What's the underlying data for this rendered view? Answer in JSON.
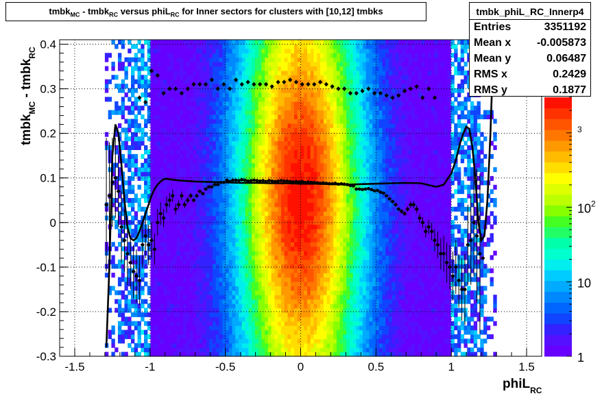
{
  "title": {
    "parts": [
      "tmbk",
      "MC",
      " - tmbk",
      "RC",
      " versus phiL",
      "RC",
      " for Inner sectors for clusters with [10,12] tmbks"
    ]
  },
  "stats": {
    "name": "tmbk_phiL_RC_Innerp4",
    "rows": [
      {
        "key": "Entries",
        "value": "3351192"
      },
      {
        "key": "Mean x",
        "value": "-0.005873"
      },
      {
        "key": "Mean y",
        "value": "0.06487"
      },
      {
        "key": "RMS x",
        "value": "0.2429"
      },
      {
        "key": "RMS y",
        "value": "0.1877"
      }
    ]
  },
  "chart_data": {
    "type": "heatmap",
    "xlabel": {
      "main": "phiL",
      "sub": "RC"
    },
    "ylabel": {
      "parts": [
        "tmbk",
        "MC",
        " - tmbk",
        "RC"
      ]
    },
    "xlim": [
      -1.6,
      1.6
    ],
    "ylim": [
      -0.3,
      0.41
    ],
    "x_ticks": [
      "-1.5",
      "-1",
      "-0.5",
      "0",
      "0.5",
      "1",
      "1.5"
    ],
    "x_tick_values": [
      -1.5,
      -1,
      -0.5,
      0,
      0.5,
      1,
      1.5
    ],
    "y_ticks": [
      "-0.3",
      "-0.2",
      "-0.1",
      "0",
      "0.1",
      "0.2",
      "0.3",
      "0.4"
    ],
    "y_tick_values": [
      -0.3,
      -0.2,
      -0.1,
      0,
      0.1,
      0.2,
      0.3,
      0.4
    ],
    "grid": true,
    "z_scale": "log",
    "z_range": [
      1,
      3000
    ],
    "z_labels": [
      {
        "value": 1,
        "text": "1"
      },
      {
        "value": 10,
        "text": "10"
      },
      {
        "value": 100,
        "base": "10",
        "exp": "2"
      },
      {
        "value": 1000,
        "base": "",
        "exp": "3"
      }
    ],
    "palette": [
      "#6600ff",
      "#5511ff",
      "#3322ff",
      "#1144ff",
      "#0066ff",
      "#0088ff",
      "#00aaff",
      "#00ccff",
      "#00eeee",
      "#00ffcc",
      "#00ffaa",
      "#22ff66",
      "#44ff22",
      "#88ff00",
      "#bbff00",
      "#ddff00",
      "#ffff00",
      "#ffdd00",
      "#ffbb00",
      "#ff9900",
      "#ff7700",
      "#ff5500",
      "#ff3300",
      "#ff1100"
    ],
    "profile_x": [
      -1.29,
      -1.27,
      -1.25,
      -1.23,
      -1.21,
      -1.19,
      -1.17,
      -1.15,
      -1.13,
      -1.11,
      -1.09,
      -1.07,
      -1.05,
      -1.03,
      -1.01,
      -0.99,
      -0.97,
      -0.95,
      -0.93,
      -0.91,
      -0.89,
      -0.87,
      -0.85,
      -0.83,
      -0.81,
      -0.79,
      -0.77,
      -0.75,
      -0.73,
      -0.71,
      -0.69,
      -0.67,
      -0.65,
      -0.63,
      -0.61,
      -0.59,
      -0.57,
      -0.55,
      -0.53,
      -0.51,
      -0.49,
      -0.47,
      -0.45,
      -0.43,
      -0.41,
      -0.39,
      -0.37,
      -0.35,
      -0.33,
      -0.31,
      -0.29,
      -0.27,
      -0.25,
      -0.23,
      -0.21,
      -0.19,
      -0.17,
      -0.15,
      -0.13,
      -0.11,
      -0.09,
      -0.07,
      -0.05,
      -0.03,
      -0.01,
      0.01,
      0.03,
      0.05,
      0.07,
      0.09,
      0.11,
      0.13,
      0.15,
      0.17,
      0.19,
      0.21,
      0.23,
      0.25,
      0.27,
      0.29,
      0.31,
      0.33,
      0.35,
      0.37,
      0.39,
      0.41,
      0.43,
      0.45,
      0.47,
      0.49,
      0.51,
      0.53,
      0.55,
      0.57,
      0.59,
      0.61,
      0.63,
      0.65,
      0.67,
      0.69,
      0.71,
      0.73,
      0.75,
      0.77,
      0.79,
      0.81,
      0.83,
      0.85,
      0.87,
      0.89,
      0.91,
      0.93,
      0.95,
      0.97,
      0.99,
      1.01,
      1.03,
      1.05,
      1.07,
      1.09,
      1.11,
      1.13,
      1.15,
      1.17,
      1.19,
      1.21,
      1.23,
      1.25,
      1.27
    ],
    "profile_mean": [
      0.04,
      0.06,
      0.09,
      0.1,
      0.07,
      -0.01,
      -0.04,
      -0.07,
      -0.09,
      -0.11,
      -0.12,
      -0.13,
      -0.05,
      -0.03,
      -0.05,
      -0.04,
      -0.06,
      0.0,
      0.02,
      0.01,
      0.04,
      0.05,
      0.06,
      0.03,
      0.04,
      0.06,
      0.04,
      0.05,
      0.06,
      0.05,
      0.06,
      0.07,
      0.065,
      0.075,
      0.08,
      0.08,
      0.085,
      0.085,
      0.09,
      0.09,
      0.095,
      0.092,
      0.095,
      0.095,
      0.094,
      0.096,
      0.095,
      0.093,
      0.094,
      0.095,
      0.094,
      0.093,
      0.094,
      0.092,
      0.094,
      0.093,
      0.092,
      0.093,
      0.094,
      0.093,
      0.093,
      0.092,
      0.091,
      0.092,
      0.091,
      0.092,
      0.09,
      0.091,
      0.09,
      0.09,
      0.089,
      0.088,
      0.089,
      0.088,
      0.087,
      0.087,
      0.088,
      0.086,
      0.087,
      0.086,
      0.085,
      0.083,
      0.082,
      0.075,
      0.075,
      0.074,
      0.075,
      0.076,
      0.074,
      0.071,
      0.072,
      0.068,
      0.066,
      0.06,
      0.053,
      0.047,
      0.04,
      0.03,
      0.025,
      0.02,
      0.03,
      0.04,
      0.04,
      0.03,
      0.01,
      0.0,
      -0.02,
      -0.01,
      -0.02,
      -0.04,
      -0.05,
      -0.07,
      -0.07,
      -0.09,
      -0.1,
      -0.12,
      -0.1,
      -0.13,
      -0.15,
      -0.15,
      -0.05,
      -0.04,
      0.0,
      -0.03,
      -0.07,
      -0.08
    ],
    "profile_err": [
      0.15,
      0.12,
      0.1,
      0.09,
      0.08,
      0.08,
      0.07,
      0.07,
      0.06,
      0.06,
      0.06,
      0.055,
      0.05,
      0.05,
      0.045,
      0.04,
      0.035,
      0.03,
      0.025,
      0.02,
      0.018,
      0.016,
      0.014,
      0.012,
      0.01,
      0.009,
      0.008,
      0.007,
      0.006,
      0.005,
      0.005,
      0.004,
      0.004,
      0.003,
      0.003,
      0.003,
      0.003,
      0.002,
      0.002,
      0.002,
      0.002,
      0.002,
      0.002,
      0.002,
      0.002,
      0.002,
      0.002,
      0.002,
      0.002,
      0.002,
      0.002,
      0.002,
      0.002,
      0.002,
      0.002,
      0.002,
      0.002,
      0.002,
      0.002,
      0.002,
      0.002,
      0.002,
      0.002,
      0.002,
      0.002,
      0.002,
      0.002,
      0.002,
      0.002,
      0.002,
      0.002,
      0.002,
      0.002,
      0.002,
      0.002,
      0.002,
      0.002,
      0.002,
      0.002,
      0.002,
      0.002,
      0.002,
      0.002,
      0.002,
      0.002,
      0.002,
      0.002,
      0.002,
      0.002,
      0.002,
      0.002,
      0.002,
      0.002,
      0.003,
      0.003,
      0.003,
      0.004,
      0.004,
      0.005,
      0.005,
      0.006,
      0.007,
      0.008,
      0.009,
      0.01,
      0.012,
      0.014,
      0.016,
      0.02,
      0.025,
      0.03,
      0.035,
      0.04,
      0.045,
      0.05,
      0.055,
      0.06,
      0.06,
      0.07,
      0.08,
      0.09,
      0.1,
      0.12,
      0.15,
      0.18
    ],
    "upper_x": [
      -1.07,
      -1.03,
      -0.99,
      -0.95,
      -0.91,
      -0.87,
      -0.83,
      -0.79,
      -0.75,
      -0.71,
      -0.67,
      -0.63,
      -0.59,
      -0.55,
      -0.51,
      -0.47,
      -0.43,
      -0.39,
      -0.35,
      -0.31,
      -0.27,
      -0.23,
      -0.19,
      -0.15,
      -0.11,
      -0.07,
      -0.03,
      0.01,
      0.05,
      0.09,
      0.13,
      0.17,
      0.21,
      0.25,
      0.29,
      0.33,
      0.37,
      0.41,
      0.45,
      0.49,
      0.53,
      0.57,
      0.61,
      0.65,
      0.69,
      0.73,
      0.77,
      0.81,
      0.85,
      0.89
    ],
    "upper_y": [
      0.28,
      0.27,
      0.34,
      0.33,
      0.29,
      0.3,
      0.3,
      0.29,
      0.3,
      0.31,
      0.31,
      0.31,
      0.32,
      0.3,
      0.31,
      0.3,
      0.32,
      0.31,
      0.315,
      0.31,
      0.31,
      0.31,
      0.305,
      0.315,
      0.315,
      0.32,
      0.315,
      0.31,
      0.31,
      0.31,
      0.315,
      0.31,
      0.305,
      0.3,
      0.3,
      0.29,
      0.29,
      0.295,
      0.3,
      0.29,
      0.29,
      0.285,
      0.28,
      0.285,
      0.295,
      0.3,
      0.305,
      0.28,
      0.3,
      0.28
    ],
    "fit_x": [
      -1.29,
      -1.27,
      -1.25,
      -1.23,
      -1.21,
      -1.19,
      -1.17,
      -1.15,
      -1.13,
      -1.11,
      -1.09,
      -1.07,
      -1.05,
      -1.03,
      -1.01,
      -0.99,
      -0.97,
      -0.95,
      -0.93,
      -0.91,
      -0.89,
      -0.85,
      -0.8,
      -0.7,
      -0.6,
      -0.5,
      -0.4,
      -0.3,
      -0.2,
      -0.1,
      0.0,
      0.1,
      0.2,
      0.3,
      0.4,
      0.5,
      0.6,
      0.7,
      0.8,
      0.9,
      0.95,
      1.0,
      1.03,
      1.06,
      1.08,
      1.1,
      1.12,
      1.14,
      1.16,
      1.18,
      1.2,
      1.22,
      1.24,
      1.26,
      1.28
    ],
    "fit_y": [
      -0.28,
      -0.1,
      0.15,
      0.22,
      0.2,
      0.13,
      0.05,
      -0.01,
      -0.035,
      -0.04,
      -0.035,
      -0.02,
      0.0,
      0.02,
      0.04,
      0.06,
      0.075,
      0.085,
      0.092,
      0.097,
      0.098,
      0.096,
      0.094,
      0.092,
      0.091,
      0.09,
      0.089,
      0.089,
      0.088,
      0.088,
      0.087,
      0.087,
      0.086,
      0.085,
      0.086,
      0.087,
      0.088,
      0.089,
      0.088,
      0.08,
      0.085,
      0.11,
      0.14,
      0.18,
      0.2,
      0.215,
      0.21,
      0.17,
      0.1,
      0.0,
      -0.04,
      -0.03,
      0.05,
      0.2,
      0.4
    ]
  }
}
